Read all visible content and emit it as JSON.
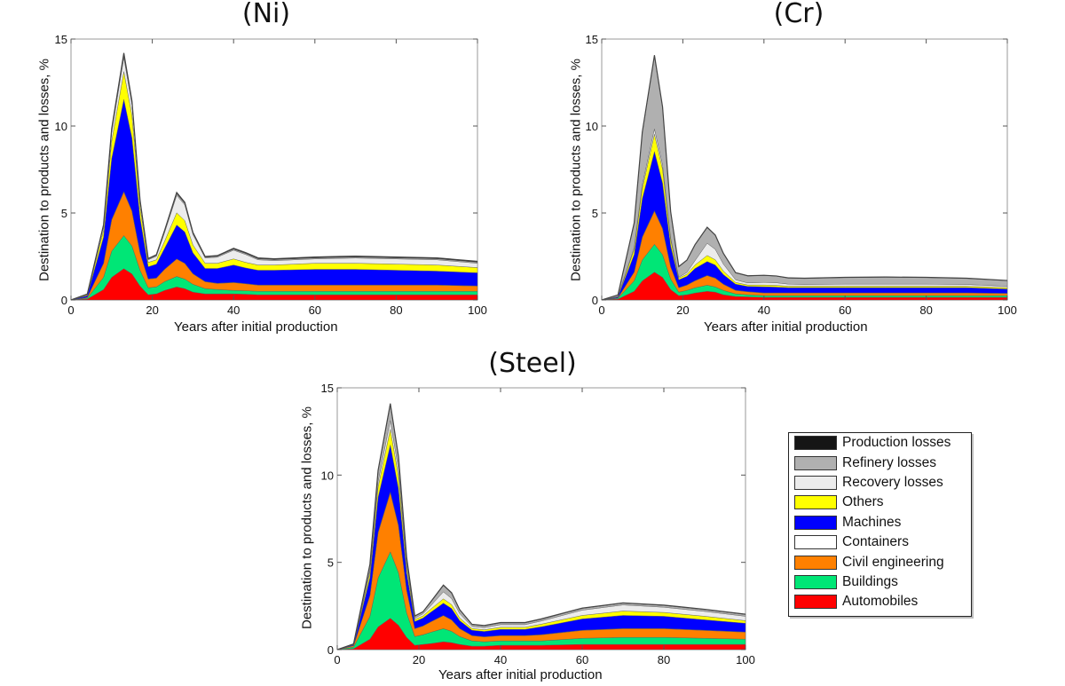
{
  "series_names": [
    "Automobiles",
    "Buildings",
    "Civil engineering",
    "Containers",
    "Machines",
    "Others",
    "Recovery losses",
    "Refinery losses",
    "Production losses"
  ],
  "colors": {
    "Automobiles": "#ff0000",
    "Buildings": "#00e676",
    "Civil engineering": "#ff8000",
    "Containers": "#ffffff",
    "Machines": "#0000ff",
    "Others": "#ffff00",
    "Recovery losses": "#ececec",
    "Refinery losses": "#b0b0b0",
    "Production losses": "#151515"
  },
  "legend": {
    "items": [
      {
        "label": "Production losses",
        "color": "#151515"
      },
      {
        "label": "Refinery losses",
        "color": "#b0b0b0"
      },
      {
        "label": "Recovery losses",
        "color": "#ececec"
      },
      {
        "label": "Others",
        "color": "#ffff00"
      },
      {
        "label": "Machines",
        "color": "#0000ff"
      },
      {
        "label": "Containers",
        "color": "#ffffff"
      },
      {
        "label": "Civil engineering",
        "color": "#ff8000"
      },
      {
        "label": "Buildings",
        "color": "#00e676"
      },
      {
        "label": "Automobiles",
        "color": "#ff0000"
      }
    ]
  },
  "chart_data": [
    {
      "id": "ni",
      "type": "area",
      "stacked": true,
      "title": "(Ni)",
      "xlabel": "Years after initial production",
      "ylabel": "Destination to products and losses, %",
      "xlim": [
        0,
        100
      ],
      "ylim": [
        0,
        15
      ],
      "xticks": [
        0,
        20,
        40,
        60,
        80,
        100
      ],
      "yticks": [
        0,
        5,
        10,
        15
      ],
      "x": [
        0,
        4,
        8,
        10,
        13,
        15,
        17,
        19,
        21,
        23,
        26,
        28,
        30,
        33,
        36,
        40,
        43,
        46,
        50,
        60,
        70,
        80,
        90,
        100
      ],
      "series": [
        {
          "name": "Automobiles",
          "values": [
            0,
            0.05,
            0.6,
            1.3,
            1.8,
            1.5,
            0.8,
            0.3,
            0.35,
            0.55,
            0.75,
            0.65,
            0.45,
            0.35,
            0.35,
            0.35,
            0.33,
            0.3,
            0.3,
            0.3,
            0.3,
            0.3,
            0.3,
            0.3
          ]
        },
        {
          "name": "Buildings",
          "values": [
            0,
            0.05,
            0.7,
            1.5,
            1.9,
            1.6,
            0.9,
            0.4,
            0.4,
            0.5,
            0.6,
            0.55,
            0.45,
            0.3,
            0.25,
            0.2,
            0.2,
            0.2,
            0.2,
            0.2,
            0.2,
            0.2,
            0.2,
            0.2
          ]
        },
        {
          "name": "Civil engineering",
          "values": [
            0,
            0.05,
            0.8,
            1.8,
            2.5,
            2.0,
            1.0,
            0.5,
            0.5,
            0.7,
            1.0,
            0.9,
            0.6,
            0.4,
            0.35,
            0.45,
            0.4,
            0.35,
            0.35,
            0.35,
            0.35,
            0.35,
            0.35,
            0.3
          ]
        },
        {
          "name": "Containers",
          "values": [
            0,
            0,
            0.01,
            0.02,
            0.03,
            0.02,
            0.01,
            0.01,
            0.01,
            0.01,
            0.01,
            0.01,
            0.01,
            0.01,
            0.01,
            0.01,
            0.01,
            0.01,
            0.01,
            0.01,
            0.01,
            0.01,
            0.01,
            0.01
          ]
        },
        {
          "name": "Machines",
          "values": [
            0,
            0.1,
            1.5,
            3.5,
            5.3,
            4.2,
            2.0,
            0.7,
            0.8,
            1.2,
            1.95,
            1.8,
            1.2,
            0.75,
            0.85,
            1.0,
            0.9,
            0.85,
            0.85,
            0.9,
            0.9,
            0.85,
            0.8,
            0.75
          ]
        },
        {
          "name": "Others",
          "values": [
            0,
            0.05,
            0.4,
            1.0,
            1.6,
            1.3,
            0.6,
            0.25,
            0.25,
            0.4,
            0.7,
            0.65,
            0.45,
            0.3,
            0.3,
            0.35,
            0.32,
            0.3,
            0.3,
            0.35,
            0.35,
            0.35,
            0.35,
            0.3
          ]
        },
        {
          "name": "Recovery losses",
          "values": [
            0,
            0.02,
            0.2,
            0.5,
            0.8,
            0.6,
            0.3,
            0.15,
            0.2,
            0.5,
            1.0,
            0.9,
            0.6,
            0.3,
            0.35,
            0.5,
            0.45,
            0.3,
            0.25,
            0.25,
            0.3,
            0.3,
            0.3,
            0.25
          ]
        },
        {
          "name": "Refinery losses",
          "values": [
            0,
            0.01,
            0.06,
            0.12,
            0.15,
            0.12,
            0.06,
            0.04,
            0.05,
            0.07,
            0.1,
            0.09,
            0.07,
            0.05,
            0.05,
            0.06,
            0.06,
            0.06,
            0.06,
            0.06,
            0.06,
            0.06,
            0.06,
            0.06
          ]
        },
        {
          "name": "Production losses",
          "values": [
            0,
            0.01,
            0.05,
            0.1,
            0.12,
            0.1,
            0.05,
            0.03,
            0.04,
            0.05,
            0.07,
            0.06,
            0.05,
            0.04,
            0.04,
            0.05,
            0.05,
            0.05,
            0.05,
            0.05,
            0.05,
            0.05,
            0.05,
            0.05
          ]
        }
      ]
    },
    {
      "id": "cr",
      "type": "area",
      "stacked": true,
      "title": "(Cr)",
      "xlabel": "Years after initial production",
      "ylabel": "Destination to products and losses, %",
      "xlim": [
        0,
        100
      ],
      "ylim": [
        0,
        15
      ],
      "xticks": [
        0,
        20,
        40,
        60,
        80,
        100
      ],
      "yticks": [
        0,
        5,
        10,
        15
      ],
      "x": [
        0,
        4,
        8,
        10,
        13,
        15,
        17,
        19,
        21,
        23,
        26,
        28,
        30,
        33,
        36,
        40,
        43,
        46,
        50,
        60,
        70,
        80,
        90,
        100
      ],
      "series": [
        {
          "name": "Automobiles",
          "values": [
            0,
            0.05,
            0.5,
            1.1,
            1.6,
            1.3,
            0.6,
            0.25,
            0.3,
            0.4,
            0.5,
            0.45,
            0.3,
            0.2,
            0.18,
            0.15,
            0.15,
            0.15,
            0.15,
            0.15,
            0.15,
            0.15,
            0.15,
            0.15
          ]
        },
        {
          "name": "Buildings",
          "values": [
            0,
            0.05,
            0.6,
            1.2,
            1.6,
            1.3,
            0.6,
            0.2,
            0.25,
            0.3,
            0.35,
            0.3,
            0.25,
            0.15,
            0.12,
            0.1,
            0.1,
            0.1,
            0.1,
            0.1,
            0.1,
            0.1,
            0.1,
            0.1
          ]
        },
        {
          "name": "Civil engineering",
          "values": [
            0,
            0.03,
            0.5,
            1.3,
            1.9,
            1.5,
            0.7,
            0.25,
            0.3,
            0.4,
            0.55,
            0.5,
            0.35,
            0.2,
            0.17,
            0.15,
            0.15,
            0.15,
            0.15,
            0.15,
            0.15,
            0.15,
            0.15,
            0.12
          ]
        },
        {
          "name": "Containers",
          "values": [
            0,
            0,
            0.01,
            0.02,
            0.03,
            0.02,
            0.01,
            0.01,
            0.01,
            0.01,
            0.01,
            0.01,
            0.01,
            0.01,
            0.01,
            0.01,
            0.01,
            0.01,
            0.01,
            0.01,
            0.01,
            0.01,
            0.01,
            0.01
          ]
        },
        {
          "name": "Machines",
          "values": [
            0,
            0.05,
            1.0,
            2.2,
            3.4,
            2.6,
            1.2,
            0.45,
            0.5,
            0.7,
            0.8,
            0.75,
            0.55,
            0.35,
            0.3,
            0.35,
            0.33,
            0.3,
            0.3,
            0.3,
            0.3,
            0.3,
            0.3,
            0.25
          ]
        },
        {
          "name": "Others",
          "values": [
            0,
            0.01,
            0.3,
            0.6,
            1.0,
            0.8,
            0.35,
            0.1,
            0.12,
            0.2,
            0.35,
            0.3,
            0.2,
            0.1,
            0.08,
            0.1,
            0.1,
            0.08,
            0.08,
            0.08,
            0.08,
            0.08,
            0.08,
            0.08
          ]
        },
        {
          "name": "Recovery losses",
          "values": [
            0,
            0.01,
            0.1,
            0.2,
            0.3,
            0.25,
            0.1,
            0.05,
            0.1,
            0.25,
            0.7,
            0.6,
            0.4,
            0.15,
            0.12,
            0.15,
            0.15,
            0.12,
            0.1,
            0.12,
            0.12,
            0.12,
            0.1,
            0.08
          ]
        },
        {
          "name": "Refinery losses",
          "values": [
            0,
            0.08,
            1.4,
            3.0,
            4.2,
            3.3,
            1.5,
            0.6,
            0.7,
            0.9,
            0.9,
            0.8,
            0.6,
            0.4,
            0.4,
            0.4,
            0.38,
            0.35,
            0.35,
            0.38,
            0.4,
            0.38,
            0.35,
            0.32
          ]
        },
        {
          "name": "Production losses",
          "values": [
            0,
            0.01,
            0.02,
            0.03,
            0.04,
            0.03,
            0.02,
            0.01,
            0.01,
            0.02,
            0.02,
            0.02,
            0.02,
            0.01,
            0.01,
            0.01,
            0.01,
            0.01,
            0.01,
            0.01,
            0.01,
            0.01,
            0.01,
            0.01
          ]
        }
      ]
    },
    {
      "id": "steel",
      "type": "area",
      "stacked": true,
      "title": "(Steel)",
      "xlabel": "Years after initial production",
      "ylabel": "Destination to products and losses, %",
      "xlim": [
        0,
        100
      ],
      "ylim": [
        0,
        15
      ],
      "xticks": [
        0,
        20,
        40,
        60,
        80,
        100
      ],
      "yticks": [
        0,
        5,
        10,
        15
      ],
      "x": [
        0,
        4,
        8,
        10,
        13,
        15,
        17,
        19,
        21,
        23,
        26,
        28,
        30,
        33,
        36,
        40,
        43,
        46,
        50,
        60,
        70,
        80,
        90,
        100
      ],
      "series": [
        {
          "name": "Automobiles",
          "values": [
            0,
            0.05,
            0.6,
            1.3,
            1.8,
            1.4,
            0.7,
            0.25,
            0.3,
            0.35,
            0.45,
            0.4,
            0.3,
            0.2,
            0.2,
            0.25,
            0.25,
            0.25,
            0.25,
            0.3,
            0.3,
            0.3,
            0.3,
            0.3
          ]
        },
        {
          "name": "Buildings",
          "values": [
            0,
            0.1,
            1.3,
            2.8,
            3.8,
            3.0,
            1.4,
            0.5,
            0.55,
            0.65,
            0.75,
            0.65,
            0.45,
            0.3,
            0.25,
            0.25,
            0.25,
            0.25,
            0.25,
            0.35,
            0.4,
            0.4,
            0.35,
            0.3
          ]
        },
        {
          "name": "Civil engineering",
          "values": [
            0,
            0.08,
            1.2,
            2.6,
            3.4,
            2.7,
            1.3,
            0.45,
            0.5,
            0.6,
            0.75,
            0.65,
            0.45,
            0.3,
            0.28,
            0.3,
            0.3,
            0.3,
            0.35,
            0.45,
            0.5,
            0.5,
            0.45,
            0.4
          ]
        },
        {
          "name": "Containers",
          "values": [
            0,
            0,
            0.01,
            0.02,
            0.03,
            0.02,
            0.01,
            0.01,
            0.01,
            0.01,
            0.01,
            0.01,
            0.01,
            0.01,
            0.01,
            0.01,
            0.01,
            0.01,
            0.01,
            0.01,
            0.01,
            0.01,
            0.01,
            0.01
          ]
        },
        {
          "name": "Machines",
          "values": [
            0,
            0.05,
            1.0,
            2.0,
            2.7,
            2.1,
            1.0,
            0.4,
            0.45,
            0.55,
            0.7,
            0.65,
            0.45,
            0.3,
            0.3,
            0.35,
            0.35,
            0.35,
            0.45,
            0.65,
            0.75,
            0.7,
            0.6,
            0.5
          ]
        },
        {
          "name": "Others",
          "values": [
            0,
            0.02,
            0.3,
            0.6,
            0.9,
            0.7,
            0.35,
            0.12,
            0.12,
            0.18,
            0.25,
            0.22,
            0.15,
            0.1,
            0.1,
            0.12,
            0.12,
            0.12,
            0.15,
            0.2,
            0.25,
            0.22,
            0.2,
            0.15
          ]
        },
        {
          "name": "Recovery losses",
          "values": [
            0,
            0.01,
            0.15,
            0.3,
            0.5,
            0.4,
            0.2,
            0.08,
            0.12,
            0.2,
            0.4,
            0.35,
            0.25,
            0.12,
            0.12,
            0.15,
            0.15,
            0.15,
            0.18,
            0.3,
            0.35,
            0.3,
            0.28,
            0.25
          ]
        },
        {
          "name": "Refinery losses",
          "values": [
            0,
            0.01,
            0.3,
            0.6,
            0.9,
            0.7,
            0.3,
            0.1,
            0.1,
            0.2,
            0.35,
            0.3,
            0.2,
            0.1,
            0.1,
            0.1,
            0.1,
            0.1,
            0.1,
            0.1,
            0.1,
            0.1,
            0.1,
            0.1
          ]
        },
        {
          "name": "Production losses",
          "values": [
            0,
            0.01,
            0.03,
            0.05,
            0.07,
            0.05,
            0.03,
            0.02,
            0.02,
            0.03,
            0.04,
            0.03,
            0.03,
            0.02,
            0.02,
            0.02,
            0.02,
            0.02,
            0.02,
            0.02,
            0.02,
            0.02,
            0.02,
            0.02
          ]
        }
      ]
    }
  ]
}
